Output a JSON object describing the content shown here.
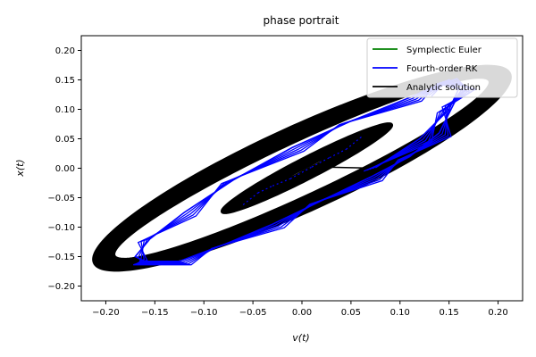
{
  "chart_data": {
    "type": "line",
    "title": "phase portrait",
    "xlabel": "v(t)",
    "ylabel": "x(t)",
    "xlim": [
      -0.225,
      0.225
    ],
    "ylim": [
      -0.225,
      0.225
    ],
    "xticks": [
      -0.2,
      -0.15,
      -0.1,
      -0.05,
      0.0,
      0.05,
      0.1,
      0.15,
      0.2
    ],
    "xtick_labels": [
      "−0.20",
      "−0.15",
      "−0.10",
      "−0.05",
      "0.00",
      "0.05",
      "0.10",
      "0.15",
      "0.20"
    ],
    "yticks": [
      -0.2,
      -0.15,
      -0.1,
      -0.05,
      0.0,
      0.05,
      0.1,
      0.15,
      0.2
    ],
    "ytick_labels": [
      "−0.20",
      "−0.15",
      "−0.10",
      "−0.05",
      "0.00",
      "0.05",
      "0.10",
      "0.15",
      "0.20"
    ],
    "grid": false,
    "legend_position": "top-right",
    "series": [
      {
        "name": "Symplectic Euler",
        "color": "#008000",
        "kind": "ellipse_band",
        "center": [
          0.0,
          0.0
        ],
        "semi_major": 0.255,
        "semi_minor_inner": 0.04,
        "semi_minor_outer": 0.062,
        "angle_deg": 38.5,
        "loops": 22
      },
      {
        "name": "Fourth-order RK",
        "color": "#0000ff",
        "kind": "trajectory",
        "points": [
          [
            0.075,
            0.001
          ],
          [
            0.12,
            0.05
          ],
          [
            0.15,
            0.1
          ],
          [
            0.16,
            0.135
          ],
          [
            0.15,
            0.15
          ],
          [
            0.11,
            0.12
          ],
          [
            0.05,
            0.08
          ],
          [
            -0.01,
            0.035
          ],
          [
            -0.07,
            -0.02
          ],
          [
            -0.12,
            -0.075
          ],
          [
            -0.155,
            -0.12
          ],
          [
            -0.17,
            -0.15
          ],
          [
            -0.16,
            -0.158
          ],
          [
            -0.125,
            -0.158
          ],
          [
            -0.08,
            -0.13
          ],
          [
            -0.03,
            -0.095
          ],
          [
            0.02,
            -0.055
          ],
          [
            0.07,
            -0.015
          ],
          [
            0.11,
            0.02
          ],
          [
            0.14,
            0.06
          ],
          [
            0.155,
            0.11
          ],
          [
            0.165,
            0.14
          ],
          [
            0.158,
            0.152
          ],
          [
            0.12,
            0.128
          ]
        ],
        "inner_points": [
          [
            -0.06,
            -0.062
          ],
          [
            -0.045,
            -0.042
          ],
          [
            -0.03,
            -0.03
          ],
          [
            -0.012,
            -0.018
          ],
          [
            0.01,
            0.002
          ],
          [
            0.028,
            0.018
          ],
          [
            0.045,
            0.032
          ],
          [
            0.062,
            0.055
          ]
        ]
      },
      {
        "name": "Analytic solution",
        "color": "#000000",
        "kind": "inner_band",
        "center": [
          0.005,
          0.0
        ],
        "semi_major": 0.11,
        "semi_minor_inner": 0.0,
        "semi_minor_outer": 0.013,
        "angle_deg": 41.0,
        "segment": [
          [
            0.02,
            0.002
          ],
          [
            0.077,
            0.0
          ]
        ]
      }
    ]
  }
}
